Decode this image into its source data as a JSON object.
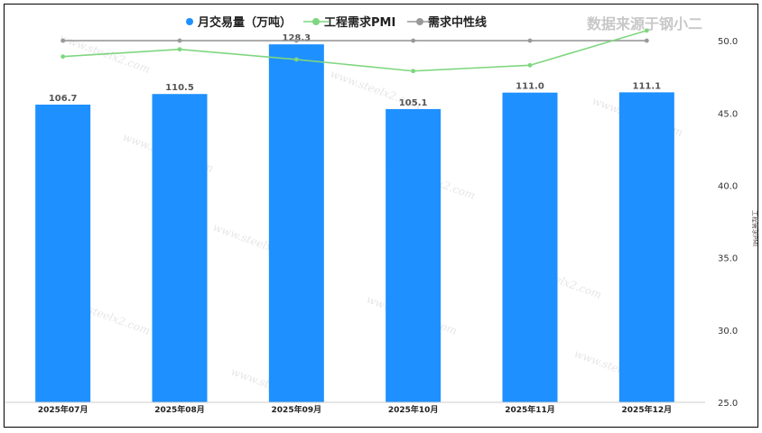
{
  "source_text": "数据来源于钢小二",
  "watermark_text": "www.steelx2.com",
  "chart_data": {
    "type": "bar",
    "categories": [
      "2025年07月",
      "2025年08月",
      "2025年09月",
      "2025年10月",
      "2025年11月",
      "2025年12月"
    ],
    "series": [
      {
        "name": "月交易量（万吨）",
        "type": "bar",
        "axis": "left",
        "color": "#1e90ff",
        "values": [
          106.7,
          110.5,
          128.3,
          105.1,
          111.0,
          111.1
        ],
        "labels": [
          "106.7",
          "110.5",
          "128.3",
          "105.1",
          "111.0",
          "111.1"
        ]
      },
      {
        "name": "工程需求PMI",
        "type": "line",
        "axis": "right",
        "color": "#7ed67e",
        "values": [
          48.9,
          49.4,
          48.7,
          47.9,
          48.3,
          50.7
        ]
      },
      {
        "name": "需求中性线",
        "type": "line",
        "axis": "right",
        "color": "#999999",
        "values": [
          50.0,
          50.0,
          50.0,
          50.0,
          50.0,
          50.0
        ]
      }
    ],
    "left_axis": {
      "range": [
        0,
        129
      ]
    },
    "right_axis": {
      "label": "工程需求PMI",
      "range": [
        25.0,
        52.0
      ],
      "ticks": [
        "25.0",
        "30.0",
        "35.0",
        "40.0",
        "45.0",
        "50.0"
      ]
    },
    "legend_position": "top-center",
    "grid": false
  }
}
